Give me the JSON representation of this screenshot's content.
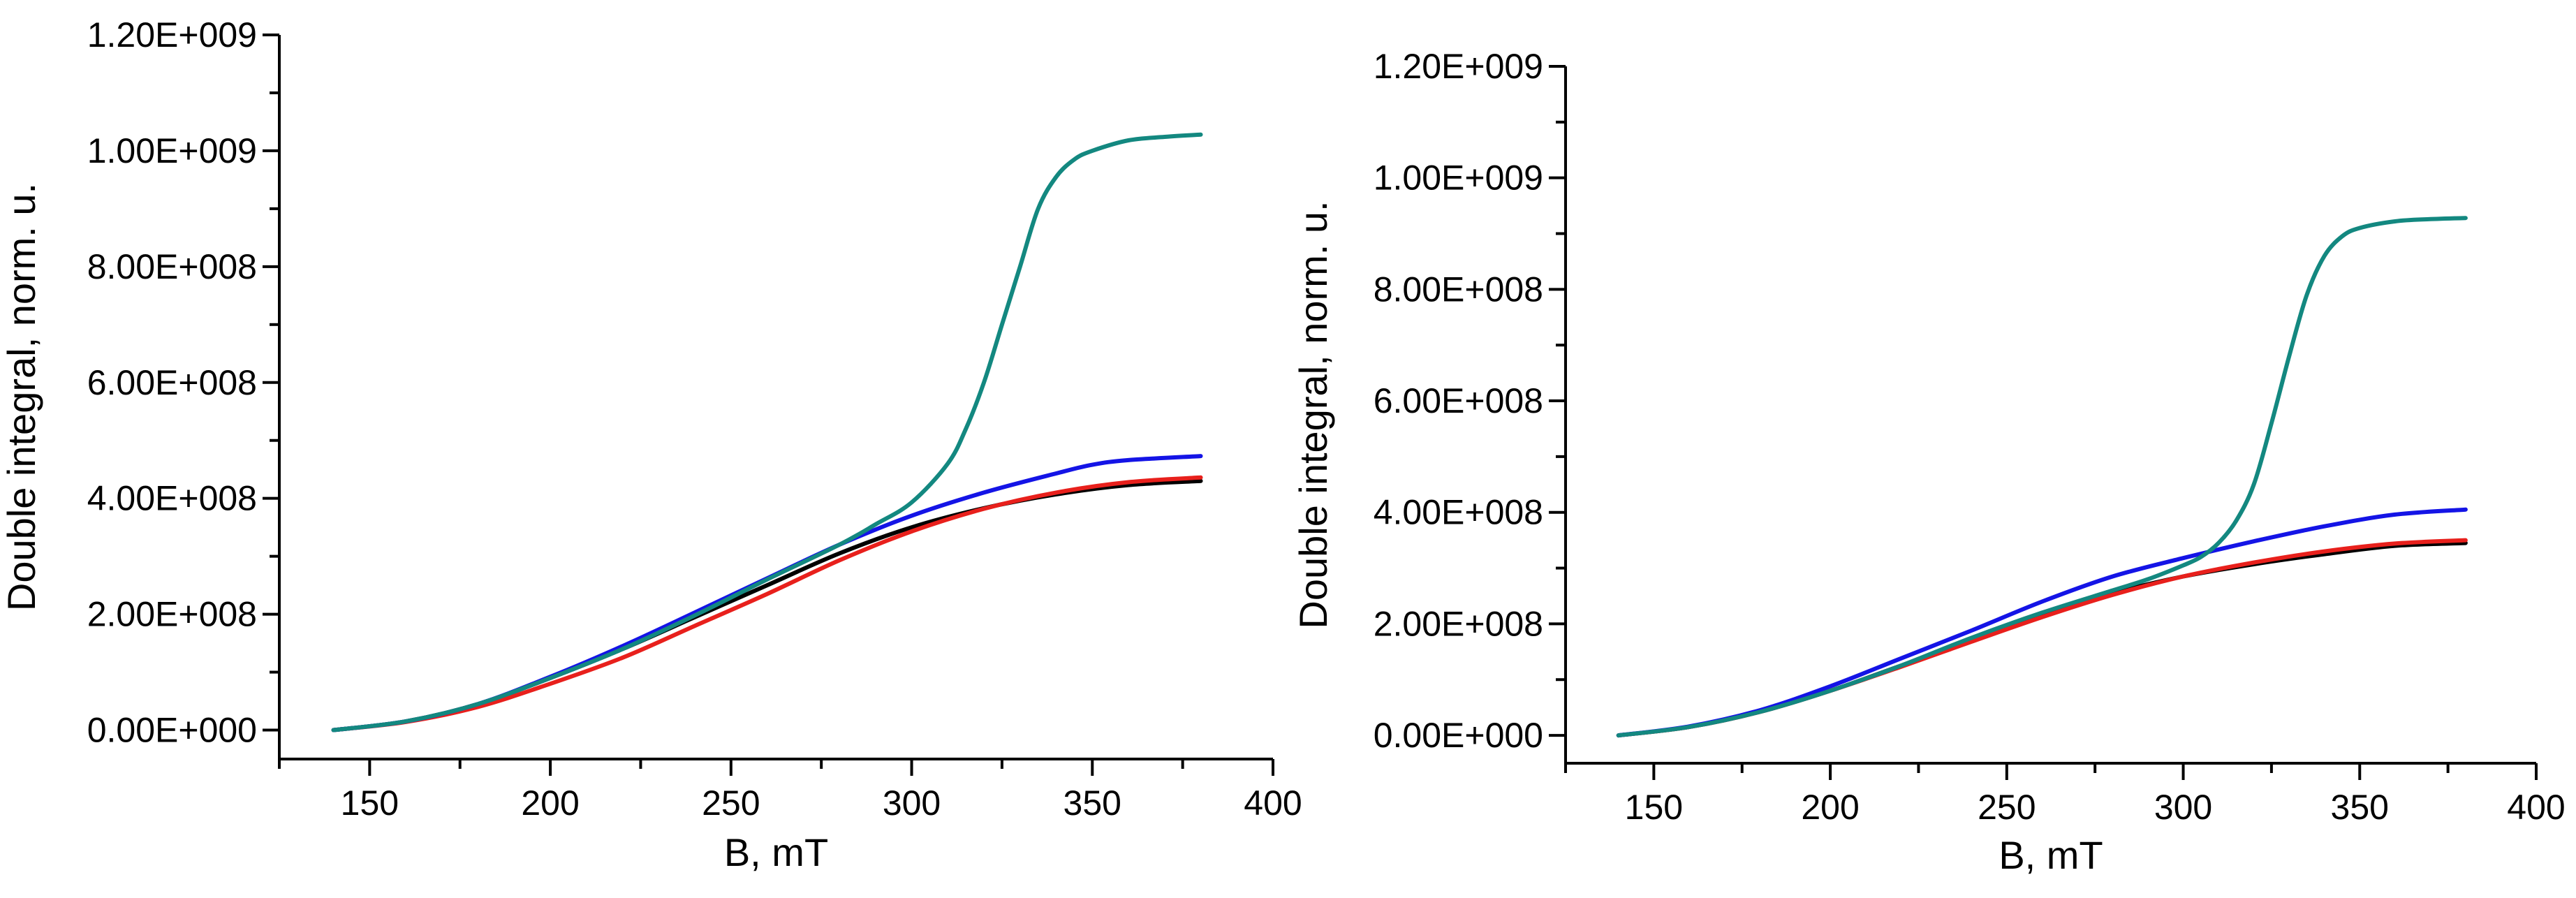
{
  "chart_data": [
    {
      "type": "line",
      "title": "",
      "xlabel": "B, mT",
      "ylabel": "Double integral, norm. u.",
      "xlim": [
        125,
        400
      ],
      "ylim": [
        -50000000,
        1200000000
      ],
      "xticks": [
        150,
        200,
        250,
        300,
        350,
        400
      ],
      "xtick_labels": [
        "150",
        "200",
        "250",
        "300",
        "350",
        "400"
      ],
      "yticks": [
        0,
        200000000,
        400000000,
        600000000,
        800000000,
        1000000000,
        1200000000
      ],
      "ytick_labels": [
        "0.00E+000",
        "2.00E+008",
        "4.00E+008",
        "6.00E+008",
        "8.00E+008",
        "1.00E+009",
        "1.20E+009"
      ],
      "series": [
        {
          "name": "black",
          "color": "#000000",
          "x": [
            140,
            160,
            180,
            200,
            220,
            240,
            260,
            280,
            300,
            320,
            340,
            360,
            380
          ],
          "y": [
            0,
            15000000,
            45000000,
            90000000,
            140000000,
            195000000,
            250000000,
            305000000,
            350000000,
            383000000,
            407000000,
            423000000,
            430000000
          ]
        },
        {
          "name": "red",
          "color": "#e8201c",
          "x": [
            140,
            160,
            180,
            200,
            220,
            240,
            260,
            280,
            300,
            320,
            340,
            360,
            380
          ],
          "y": [
            0,
            14000000,
            40000000,
            80000000,
            125000000,
            180000000,
            235000000,
            293000000,
            343000000,
            382000000,
            410000000,
            428000000,
            436000000
          ]
        },
        {
          "name": "blue",
          "color": "#1414e6",
          "x": [
            140,
            160,
            180,
            200,
            220,
            240,
            260,
            280,
            300,
            320,
            340,
            350,
            360,
            380
          ],
          "y": [
            0,
            15000000,
            45000000,
            92000000,
            145000000,
            203000000,
            262000000,
            320000000,
            370000000,
            410000000,
            443000000,
            458000000,
            466000000,
            473000000
          ]
        },
        {
          "name": "teal",
          "color": "#138880",
          "x": [
            140,
            160,
            180,
            200,
            220,
            240,
            260,
            280,
            290,
            300,
            310,
            315,
            320,
            325,
            330,
            335,
            340,
            345,
            350,
            360,
            370,
            380
          ],
          "y": [
            0,
            15000000,
            45000000,
            90000000,
            140000000,
            198000000,
            260000000,
            320000000,
            355000000,
            393000000,
            460000000,
            520000000,
            600000000,
            700000000,
            800000000,
            900000000,
            955000000,
            985000000,
            1000000000,
            1018000000,
            1024000000,
            1028000000
          ]
        }
      ]
    },
    {
      "type": "line",
      "title": "",
      "xlabel": "B, mT",
      "ylabel": "Double integral, norm. u.",
      "xlim": [
        125,
        400
      ],
      "ylim": [
        -50000000,
        1200000000
      ],
      "xticks": [
        150,
        200,
        250,
        300,
        350,
        400
      ],
      "xtick_labels": [
        "150",
        "200",
        "250",
        "300",
        "350",
        "400"
      ],
      "yticks": [
        0,
        200000000,
        400000000,
        600000000,
        800000000,
        1000000000,
        1200000000
      ],
      "ytick_labels": [
        "0.00E+000",
        "2.00E+008",
        "4.00E+008",
        "6.00E+008",
        "8.00E+008",
        "1.00E+009",
        "1.20E+009"
      ],
      "series": [
        {
          "name": "black",
          "color": "#000000",
          "x": [
            140,
            160,
            180,
            200,
            220,
            240,
            260,
            280,
            300,
            320,
            340,
            360,
            380
          ],
          "y": [
            0,
            15000000,
            42000000,
            80000000,
            125000000,
            170000000,
            215000000,
            255000000,
            285000000,
            307000000,
            325000000,
            340000000,
            345000000
          ]
        },
        {
          "name": "red",
          "color": "#e8201c",
          "x": [
            140,
            160,
            180,
            200,
            220,
            240,
            260,
            280,
            300,
            320,
            340,
            360,
            380
          ],
          "y": [
            0,
            15000000,
            42000000,
            80000000,
            123000000,
            168000000,
            212000000,
            252000000,
            285000000,
            310000000,
            330000000,
            344000000,
            350000000
          ]
        },
        {
          "name": "blue",
          "color": "#1414e6",
          "x": [
            140,
            160,
            180,
            200,
            220,
            240,
            260,
            280,
            300,
            320,
            340,
            360,
            380
          ],
          "y": [
            0,
            16000000,
            45000000,
            88000000,
            138000000,
            188000000,
            240000000,
            285000000,
            318000000,
            348000000,
            375000000,
            396000000,
            405000000
          ]
        },
        {
          "name": "teal",
          "color": "#138880",
          "x": [
            140,
            160,
            180,
            200,
            220,
            240,
            260,
            280,
            290,
            300,
            305,
            310,
            315,
            320,
            325,
            330,
            335,
            340,
            345,
            350,
            360,
            370,
            380
          ],
          "y": [
            0,
            15000000,
            42000000,
            80000000,
            125000000,
            175000000,
            220000000,
            260000000,
            280000000,
            305000000,
            320000000,
            345000000,
            385000000,
            450000000,
            560000000,
            680000000,
            790000000,
            860000000,
            895000000,
            910000000,
            922000000,
            926000000,
            928000000
          ]
        }
      ]
    }
  ]
}
